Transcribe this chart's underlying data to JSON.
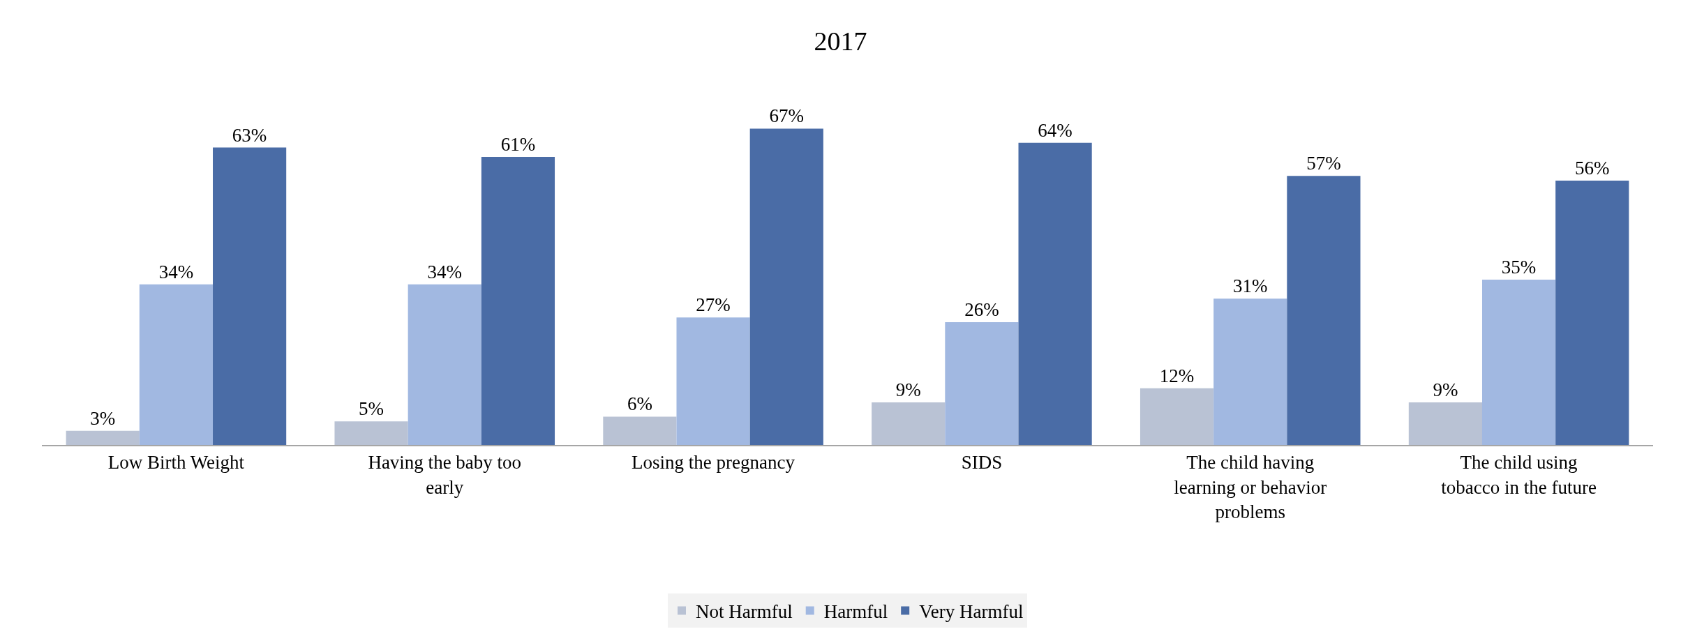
{
  "chart_data": {
    "type": "bar",
    "title": "2017",
    "categories": [
      "Low Birth Weight",
      "Having the baby too early",
      "Losing the pregnancy",
      "SIDS",
      "The child having learning or behavior problems",
      "The child using tobacco in the future"
    ],
    "series": [
      {
        "name": "Not Harmful",
        "color": "#b9c2d4",
        "values": [
          3,
          5,
          6,
          9,
          12,
          9
        ],
        "value_labels": [
          "3%",
          "5%",
          "6%",
          "9%",
          "12%",
          "9%"
        ]
      },
      {
        "name": "Harmful",
        "color": "#a1b8e1",
        "values": [
          34,
          34,
          27,
          26,
          31,
          35
        ],
        "value_labels": [
          "34%",
          "34%",
          "27%",
          "26%",
          "31%",
          "35%"
        ]
      },
      {
        "name": "Very Harmful",
        "color": "#4a6ca6",
        "values": [
          63,
          61,
          67,
          64,
          57,
          56
        ],
        "value_labels": [
          "63%",
          "61%",
          "67%",
          "64%",
          "57%",
          "56%"
        ]
      }
    ],
    "legend": "bottom"
  }
}
